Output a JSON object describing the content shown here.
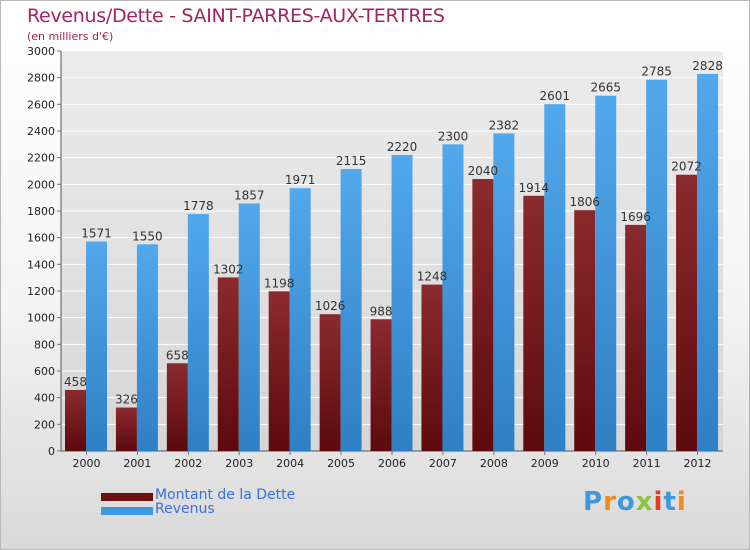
{
  "title": "Revenus/Dette - SAINT-PARRES-AUX-TERTRES",
  "subtitle": "(en milliers d'€)",
  "colors": {
    "dette": "#7a1f24",
    "revenus": "#3f97dd",
    "title": "#a3245c",
    "legend_text": "#3a6fd8"
  },
  "legend": [
    {
      "label": "Montant de la Dette",
      "color": "#6e0f12"
    },
    {
      "label": "Revenus",
      "color": "#3f97dd"
    }
  ],
  "logo": {
    "text": "Proxiti"
  },
  "chart_data": {
    "type": "bar",
    "categories": [
      "2000",
      "2001",
      "2002",
      "2003",
      "2004",
      "2005",
      "2006",
      "2007",
      "2008",
      "2009",
      "2010",
      "2011",
      "2012"
    ],
    "series": [
      {
        "name": "Montant de la Dette",
        "values": [
          458,
          326,
          658,
          1302,
          1198,
          1026,
          988,
          1248,
          2040,
          1914,
          1806,
          1696,
          2072
        ]
      },
      {
        "name": "Revenus",
        "values": [
          1571,
          1550,
          1778,
          1857,
          1971,
          2115,
          2220,
          2300,
          2382,
          2601,
          2665,
          2785,
          2828
        ]
      }
    ],
    "ylim": [
      0,
      3000
    ],
    "yticks": [
      0,
      200,
      400,
      600,
      800,
      1000,
      1200,
      1400,
      1600,
      1800,
      2000,
      2200,
      2400,
      2600,
      2800,
      3000
    ],
    "grid": true,
    "legend_position": "bottom-left"
  }
}
